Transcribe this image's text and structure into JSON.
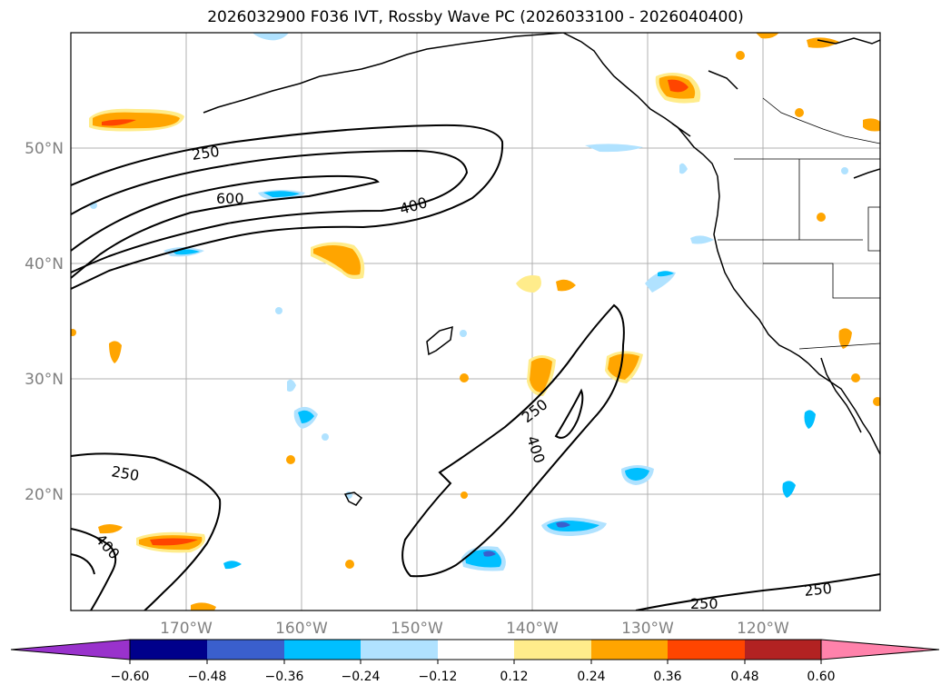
{
  "title": "2026032900 F036 IVT, Rossby Wave PC (2026033100 - 2026040400)",
  "latitude_labels": [
    "50°N",
    "40°N",
    "30°N",
    "20°N"
  ],
  "longitude_labels": [
    "170°W",
    "160°W",
    "150°W",
    "140°W",
    "130°W",
    "120°W"
  ],
  "contour_labels": [
    "250",
    "600",
    "400",
    "250",
    "400",
    "250",
    "400",
    "250",
    "250"
  ],
  "colorbar": {
    "ticks": [
      "−0.60",
      "−0.48",
      "−0.36",
      "−0.24",
      "−0.12",
      "0.12",
      "0.24",
      "0.36",
      "0.48",
      "0.60"
    ],
    "colors": [
      "#9932cc",
      "#00008b",
      "#3a5fcd",
      "#00bfff",
      "#b0e2ff",
      "#ffffff",
      "#ffec8b",
      "#ffa500",
      "#ff4500",
      "#b22222",
      "#ff82ab"
    ]
  }
}
